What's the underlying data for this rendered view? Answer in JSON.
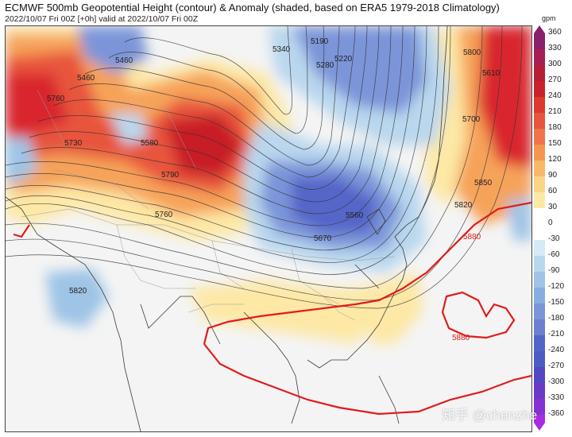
{
  "header": {
    "title": "ECMWF 500mb Geopotential Height (contour) & Anomaly (shaded, based on ERA5 1979-2018 Climatology)",
    "subtitle": "2022/10/07 Fri 00Z [+0h] valid at 2022/10/07 Fri 00Z"
  },
  "colorbar": {
    "unit": "gpm",
    "ticks": [
      "360",
      "330",
      "300",
      "270",
      "240",
      "210",
      "180",
      "150",
      "120",
      "90",
      "60",
      "30",
      "0",
      "-30",
      "-60",
      "-90",
      "-120",
      "-150",
      "-180",
      "-210",
      "-240",
      "-270",
      "-300",
      "-330",
      "-360"
    ]
  },
  "contour_labels": {
    "l5190": "5190",
    "l5220": "5220",
    "l5280": "5280",
    "l5340": "5340",
    "l5460": "5460",
    "l5560": "5560",
    "l5580": "5580",
    "l5670": "5670",
    "l5730": "5730",
    "l5760": "5760",
    "l5790": "5790",
    "l5820a": "5820",
    "l5820b": "5820",
    "l5850": "5850",
    "l5880a": "5880",
    "l5880b": "5880",
    "l5700": "5700",
    "l5610": "5610",
    "l5800": "5800"
  },
  "colors": {
    "positive_high": "#d9282e",
    "positive_mid": "#f6a35a",
    "positive_low": "#fde8a6",
    "negative_low": "#b9d7ee",
    "negative_mid": "#7b95d9",
    "negative_high": "#4b5cc4",
    "contour": "#333333",
    "contour_5880": "#e21b1b"
  },
  "watermark": "知乎 @chenzhe"
}
